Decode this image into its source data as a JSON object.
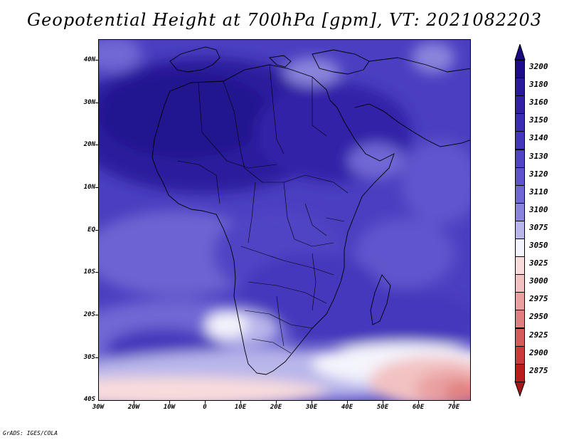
{
  "title": "Geopotential Height at 700hPa [gpm], VT: 2021082203",
  "credit": "GrADS: IGES/COLA",
  "axes": {
    "lat_ticks": [
      "40N",
      "30N",
      "20N",
      "10N",
      "EQ",
      "10S",
      "20S",
      "30S",
      "40S"
    ],
    "lon_ticks": [
      "30W",
      "20W",
      "10W",
      "0",
      "10E",
      "20E",
      "30E",
      "40E",
      "50E",
      "60E",
      "70E"
    ]
  },
  "legend": {
    "levels": [
      "3200",
      "3180",
      "3160",
      "3150",
      "3140",
      "3130",
      "3120",
      "3110",
      "3100",
      "3075",
      "3050",
      "3025",
      "3000",
      "2975",
      "2950",
      "2925",
      "2900",
      "2875"
    ],
    "colors": [
      "#1e0c8c",
      "#2a1a9c",
      "#3322a8",
      "#3b2db4",
      "#4537bc",
      "#5045c4",
      "#5e55cc",
      "#7068d4",
      "#8a84dc",
      "#b8b6ea",
      "#f4f4fc",
      "#f8dcdc",
      "#f2c2c2",
      "#eaa0a0",
      "#e07f7f",
      "#d65c5c",
      "#cc3a3a",
      "#b81e1e"
    ],
    "top_arrow_color": "#1a0a80",
    "bottom_arrow_color": "#a01818"
  },
  "map": {
    "projection": "lat-lon",
    "lat_range": [
      "40S",
      "45N"
    ],
    "lon_range": [
      "30W",
      "75E"
    ],
    "variable": "700hPa geopotential height",
    "features": [
      "coastlines",
      "country borders",
      "filled contours"
    ]
  }
}
